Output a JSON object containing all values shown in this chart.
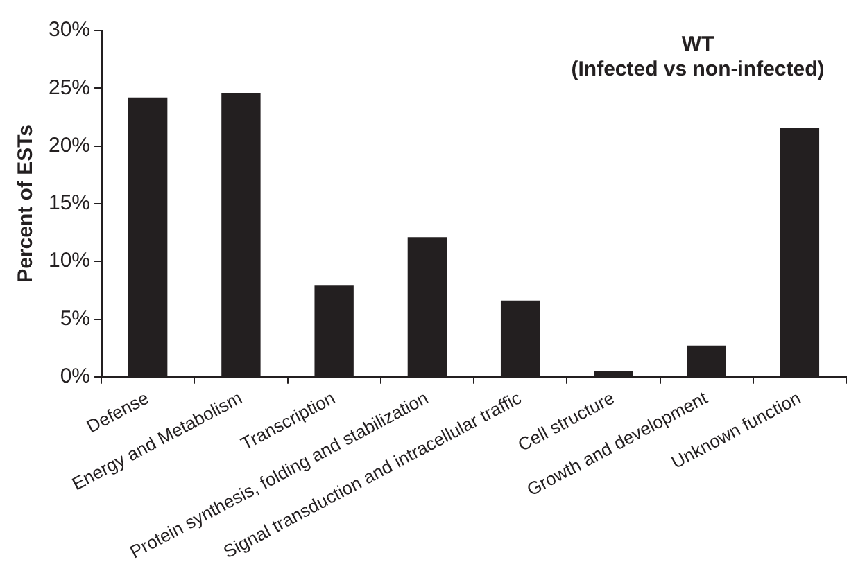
{
  "chart_data": {
    "type": "bar",
    "title": "WT",
    "subtitle": "(Infected vs non-infected)",
    "ylabel": "Percent of ESTs",
    "categories": [
      "Defense",
      "Energy and Metabolism",
      "Transcription",
      "Protein synthesis, folding and stabilization",
      "Signal transduction and intracellular traffic",
      "Cell structure",
      "Growth and development",
      "Unknown function"
    ],
    "values": [
      24.2,
      24.6,
      7.9,
      12.1,
      6.6,
      0.5,
      2.7,
      21.6
    ],
    "color": "#231f20",
    "ylim": [
      0,
      30
    ],
    "yticks": [
      {
        "value": 0,
        "label": "0%"
      },
      {
        "value": 5,
        "label": "5%"
      },
      {
        "value": 10,
        "label": "10%"
      },
      {
        "value": 15,
        "label": "15%"
      },
      {
        "value": 20,
        "label": "20%"
      },
      {
        "value": 25,
        "label": "25%"
      },
      {
        "value": 30,
        "label": "30%"
      }
    ],
    "grid": false,
    "legend": false
  }
}
